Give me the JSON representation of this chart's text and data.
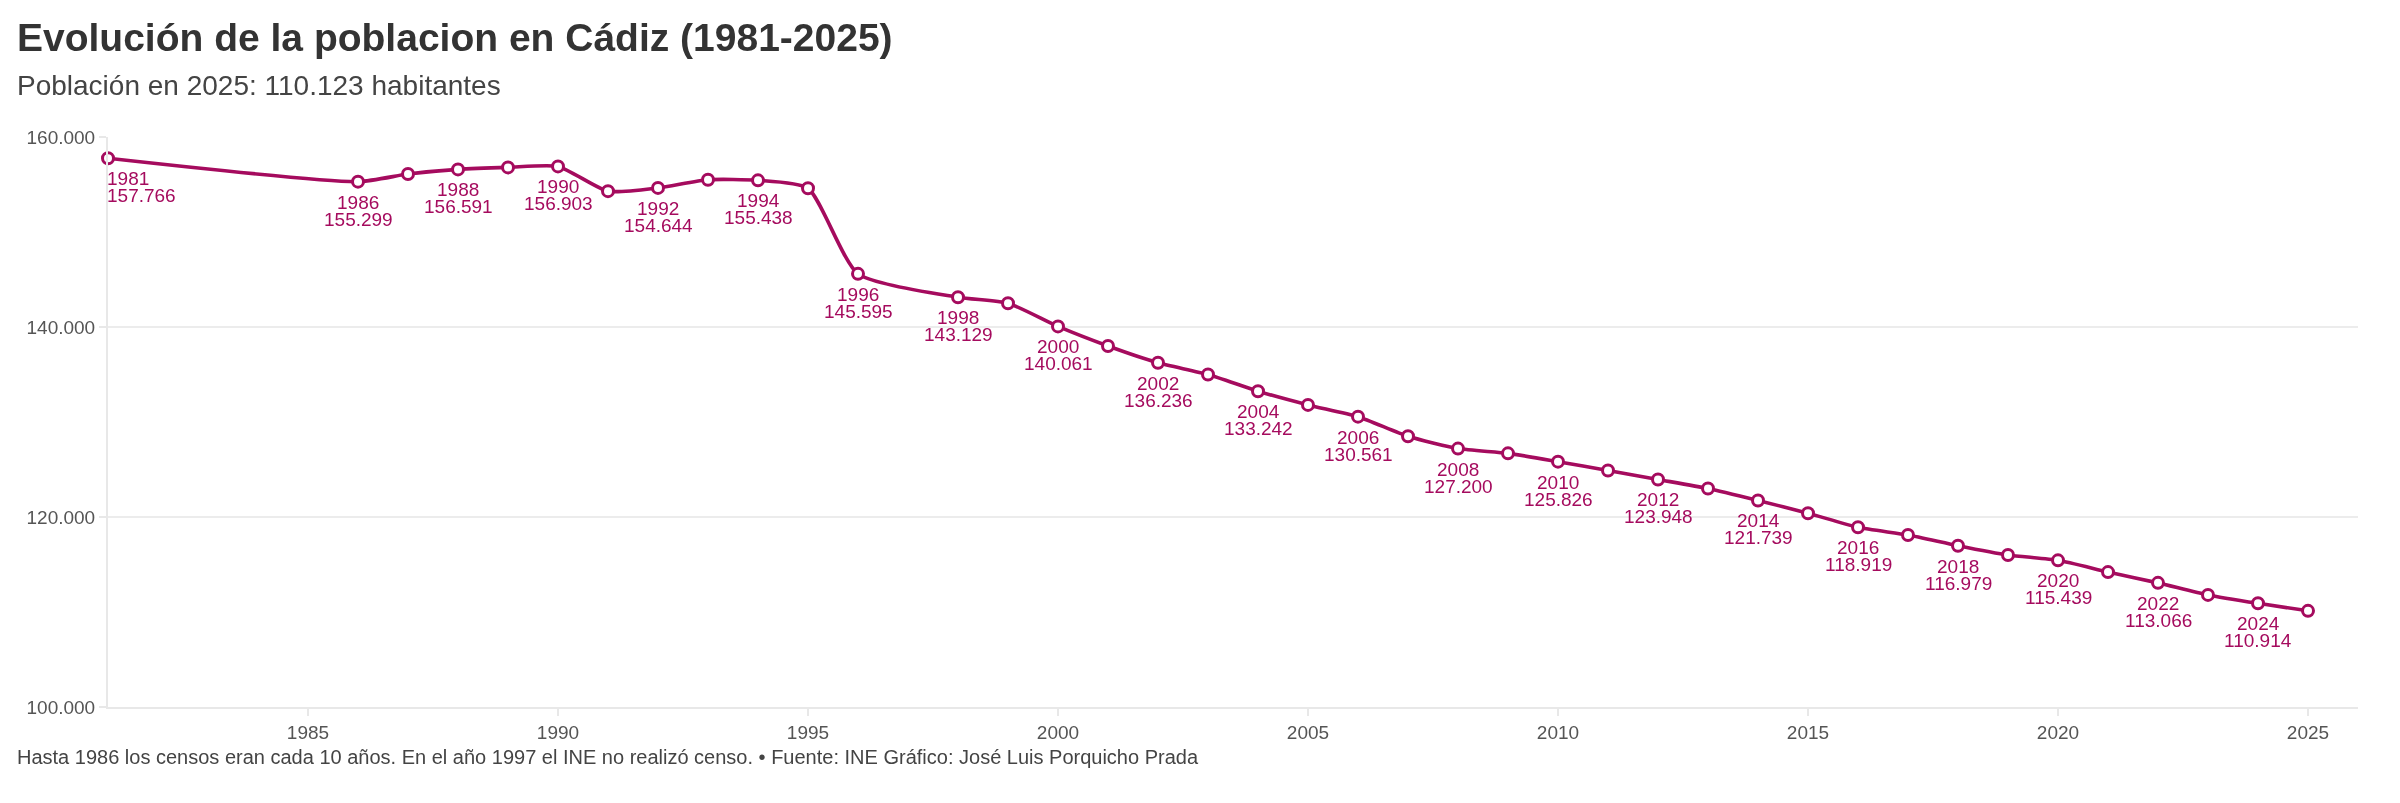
{
  "chart_data": {
    "type": "line",
    "title": "Evolución de la poblacion en Cádiz (1981-2025)",
    "subtitle": "Población en 2025: 110.123 habitantes",
    "annotations": [
      "Hasta 1986 los censos eran cada 10 años. En el año 1997 el INE no realizó censo. • Fuente: INE Gráfico: José Luis Porquicho Prada",
      {
        "text": "1981",
        "x": 1981,
        "y": 157766
      },
      {
        "text": "1986",
        "x": 1986,
        "y": 155299
      },
      {
        "text": "1988",
        "x": 1988,
        "y": 156591
      },
      {
        "text": "1990",
        "x": 1990,
        "y": 156903
      },
      {
        "text": "1992",
        "x": 1992,
        "y": 154644
      },
      {
        "text": "1994",
        "x": 1994,
        "y": 155438
      },
      {
        "text": "1996",
        "x": 1996,
        "y": 145595
      },
      {
        "text": "1998",
        "x": 1998,
        "y": 143129
      },
      {
        "text": "2000",
        "x": 2000,
        "y": 140061
      },
      {
        "text": "2002",
        "x": 2002,
        "y": 136236
      },
      {
        "text": "2004",
        "x": 2004,
        "y": 133242
      },
      {
        "text": "2006",
        "x": 2006,
        "y": 130561
      },
      {
        "text": "2008",
        "x": 2008,
        "y": 127200
      },
      {
        "text": "2010",
        "x": 2010,
        "y": 125826
      },
      {
        "text": "2012",
        "x": 2012,
        "y": 123948
      },
      {
        "text": "2014",
        "x": 2014,
        "y": 121739
      },
      {
        "text": "2016",
        "x": 2016,
        "y": 118919
      },
      {
        "text": "2018",
        "x": 2018,
        "y": 116979
      },
      {
        "text": "2020",
        "x": 2020,
        "y": 115439
      },
      {
        "text": "2022",
        "x": 2022,
        "y": 113066
      },
      {
        "text": "2024",
        "x": 2024,
        "y": 110914
      }
    ],
    "x": [
      1981,
      1986,
      1987,
      1988,
      1989,
      1990,
      1991,
      1992,
      1993,
      1994,
      1995,
      1996,
      1998,
      1999,
      2000,
      2001,
      2002,
      2003,
      2004,
      2005,
      2006,
      2007,
      2008,
      2009,
      2010,
      2011,
      2012,
      2013,
      2014,
      2015,
      2016,
      2017,
      2018,
      2019,
      2020,
      2021,
      2022,
      2023,
      2024,
      2025
    ],
    "series": [
      {
        "color": "#a50b5e",
        "values": [
          157766,
          155299,
          156100,
          156591,
          156800,
          156903,
          154300,
          154644,
          155500,
          155438,
          154600,
          145595,
          143129,
          142500,
          140061,
          138000,
          136236,
          135000,
          133242,
          131800,
          130561,
          128500,
          127200,
          126700,
          125826,
          124900,
          123948,
          123000,
          121739,
          120400,
          118919,
          118100,
          116979,
          116000,
          115439,
          114200,
          113066,
          111800,
          110914,
          110123
        ],
        "value_labels": [
          "157.766",
          "155.299",
          null,
          "156.591",
          null,
          "156.903",
          null,
          "154.644",
          null,
          "155.438",
          null,
          "145.595",
          "143.129",
          null,
          "140.061",
          null,
          "136.236",
          null,
          "133.242",
          null,
          "130.561",
          null,
          "127.200",
          null,
          "125.826",
          null,
          "123.948",
          null,
          "121.739",
          null,
          "118.919",
          null,
          "116.979",
          null,
          "115.439",
          null,
          "113.066",
          null,
          "110.914",
          null
        ]
      }
    ],
    "xlim": [
      1981,
      2026
    ],
    "xticks": [
      1985,
      1990,
      1995,
      2000,
      2005,
      2010,
      2015,
      2020,
      2025
    ],
    "ylim": [
      100000,
      160000
    ],
    "yticks": [
      {
        "value": 100000,
        "label": "100.000"
      },
      {
        "value": 120000,
        "label": "120.000"
      },
      {
        "value": 140000,
        "label": "140.000"
      },
      {
        "value": 160000,
        "label": "160.000"
      }
    ],
    "grid": "y",
    "marker": "circle",
    "line_style": "solid"
  }
}
